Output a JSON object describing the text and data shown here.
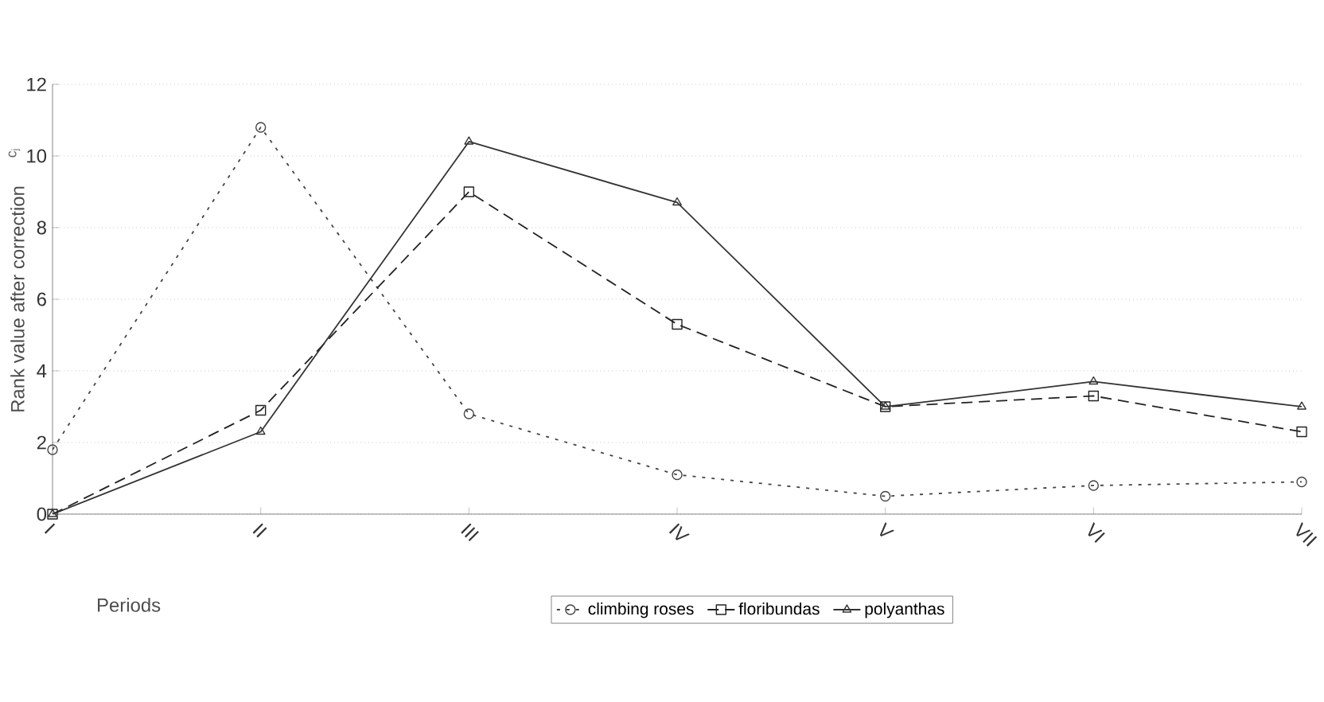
{
  "chart_data": {
    "type": "line",
    "ylabel": "Rank value after correction",
    "xlabel": "Periods",
    "annotations": [
      "c$_{j}$"
    ],
    "categories": [
      "I",
      "II",
      "III",
      "IV",
      "V",
      "VI",
      "VII"
    ],
    "series": [
      {
        "name": "climbing roses",
        "color": "#444444",
        "line_style": "dotted",
        "marker": "circle",
        "values": [
          1.8,
          10.8,
          2.8,
          1.1,
          0.5,
          0.8,
          0.9
        ]
      },
      {
        "name": "floribundas",
        "color": "#222222",
        "line_style": "dashed",
        "marker": "square",
        "values": [
          0,
          2.9,
          9.0,
          5.3,
          3.0,
          3.3,
          2.3
        ]
      },
      {
        "name": "polyanthas",
        "color": "#333333",
        "line_style": "solid",
        "marker": "triangle",
        "values": [
          0,
          2.3,
          10.4,
          8.7,
          3.0,
          3.7,
          3.0
        ]
      }
    ],
    "ylim": [
      0,
      12
    ],
    "yticks": [
      0,
      2,
      4,
      6,
      8,
      10,
      12
    ],
    "grid": "y",
    "legend": "bottom"
  }
}
